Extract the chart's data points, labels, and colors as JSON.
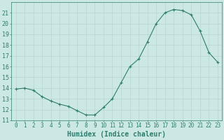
{
  "x": [
    0,
    1,
    2,
    3,
    4,
    5,
    6,
    7,
    8,
    9,
    10,
    11,
    12,
    13,
    14,
    15,
    16,
    17,
    18,
    19,
    20,
    21,
    22,
    23
  ],
  "y": [
    13.9,
    14.0,
    13.8,
    13.2,
    12.8,
    12.5,
    12.3,
    11.9,
    11.5,
    11.5,
    12.2,
    13.0,
    14.5,
    16.0,
    16.7,
    18.3,
    20.0,
    21.0,
    21.3,
    21.2,
    20.8,
    19.3,
    17.3,
    16.4
  ],
  "line_color": "#2e7d6e",
  "marker": "+",
  "marker_size": 3,
  "bg_color": "#cce8e4",
  "grid_color": "#b8d4d0",
  "tick_color": "#2e7d6e",
  "xlabel": "Humidex (Indice chaleur)",
  "xlabel_fontsize": 7,
  "ylim": [
    11,
    22
  ],
  "xlim": [
    -0.5,
    23.5
  ],
  "yticks": [
    11,
    12,
    13,
    14,
    15,
    16,
    17,
    18,
    19,
    20,
    21
  ],
  "xticks": [
    0,
    1,
    2,
    3,
    4,
    5,
    6,
    7,
    8,
    9,
    10,
    11,
    12,
    13,
    14,
    15,
    16,
    17,
    18,
    19,
    20,
    21,
    22,
    23
  ],
  "xtick_labels": [
    "0",
    "1",
    "2",
    "3",
    "4",
    "5",
    "6",
    "7",
    "8",
    "9",
    "10",
    "11",
    "12",
    "13",
    "14",
    "15",
    "16",
    "17",
    "18",
    "19",
    "20",
    "21",
    "22",
    "23"
  ],
  "line_width": 0.8,
  "tick_fontsize": 5.5,
  "ytick_fontsize": 6.0
}
